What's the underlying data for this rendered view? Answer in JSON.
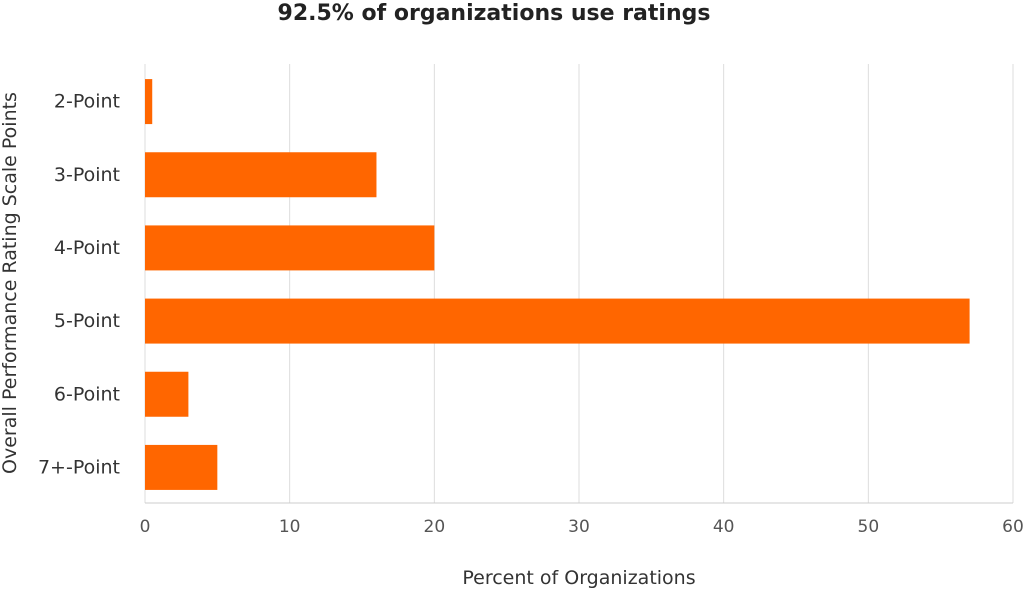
{
  "chart_data": {
    "type": "bar",
    "orientation": "horizontal",
    "title": "92.5% of organizations use ratings",
    "xlabel": "Percent of Organizations",
    "ylabel": "Overall Performance Rating Scale Points",
    "categories": [
      "2-Point",
      "3-Point",
      "4-Point",
      "5-Point",
      "6-Point",
      "7+-Point"
    ],
    "values": [
      0.5,
      16,
      20,
      57,
      3,
      5
    ],
    "xlim": [
      0,
      60
    ],
    "xticks": [
      "0",
      "10",
      "20",
      "30",
      "40",
      "50",
      "60"
    ],
    "grid": true,
    "bar_color": "#ff6600"
  }
}
